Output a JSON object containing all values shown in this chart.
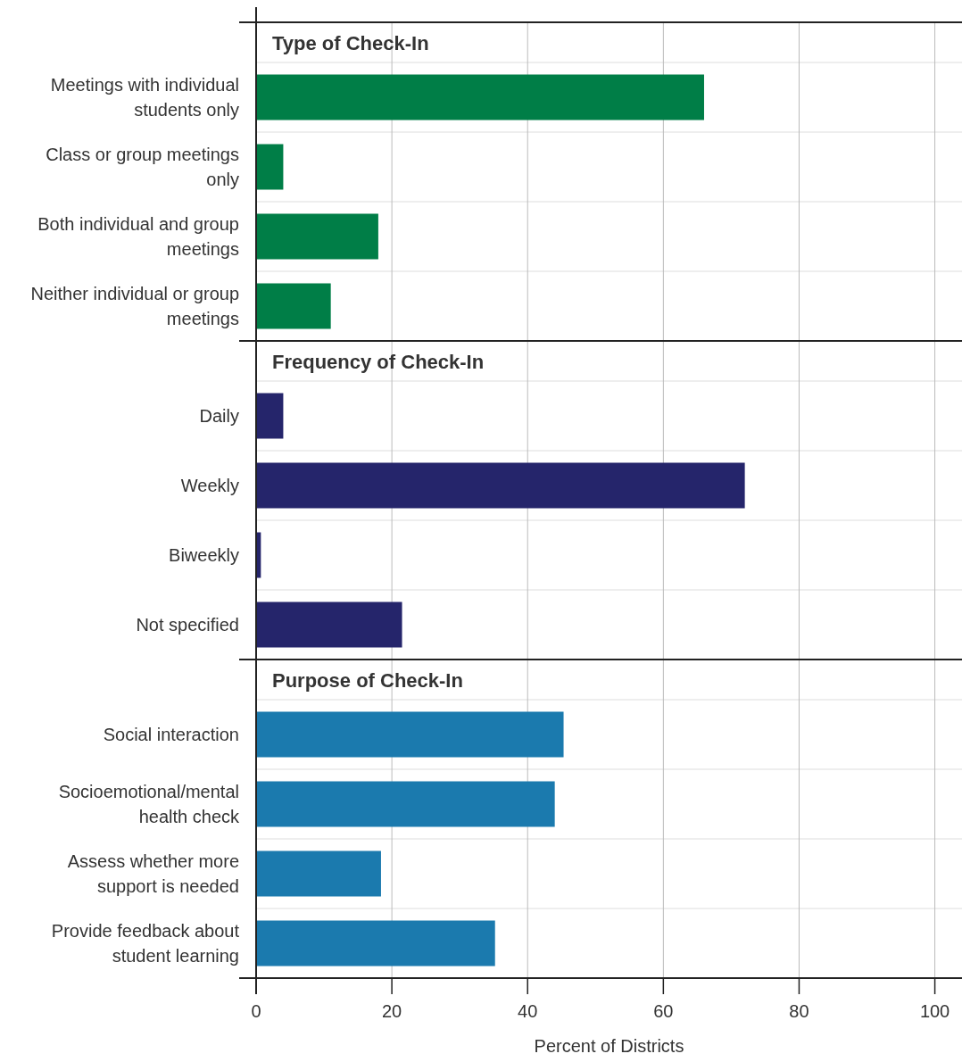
{
  "chart_data": [
    {
      "type": "bar",
      "orientation": "horizontal",
      "title": "Type of Check-In",
      "categories": [
        "Meetings with individual students only",
        "Class or group meetings only",
        "Both individual and group meetings",
        "Neither individual or group meetings"
      ],
      "values": [
        66,
        4,
        18,
        11
      ],
      "color": "#007e47",
      "xlim": [
        0,
        104
      ],
      "xticks": [
        0,
        20,
        40,
        60,
        80,
        100
      ],
      "grid": true,
      "tick_labels": "y"
    },
    {
      "type": "bar",
      "orientation": "horizontal",
      "title": "Frequency of Check-In",
      "categories": [
        "Daily",
        "Weekly",
        "Biweekly",
        "Not specified"
      ],
      "values": [
        4,
        72,
        0.7,
        21.5
      ],
      "color": "#25256b",
      "xlim": [
        0,
        104
      ],
      "xticks": [
        0,
        20,
        40,
        60,
        80,
        100
      ],
      "grid": true,
      "tick_labels": "y"
    },
    {
      "type": "bar",
      "orientation": "horizontal",
      "title": "Purpose of Check-In",
      "categories": [
        "Social interaction",
        "Socioemotional/mental health check",
        "Assess whether more support is needed",
        "Provide feedback about student learning"
      ],
      "values": [
        45.3,
        44,
        18.4,
        35.2
      ],
      "color": "#1b7aae",
      "xlim": [
        0,
        104
      ],
      "xticks": [
        0,
        20,
        40,
        60,
        80,
        100
      ],
      "grid": true,
      "xlabel": "Percent of Districts"
    }
  ]
}
